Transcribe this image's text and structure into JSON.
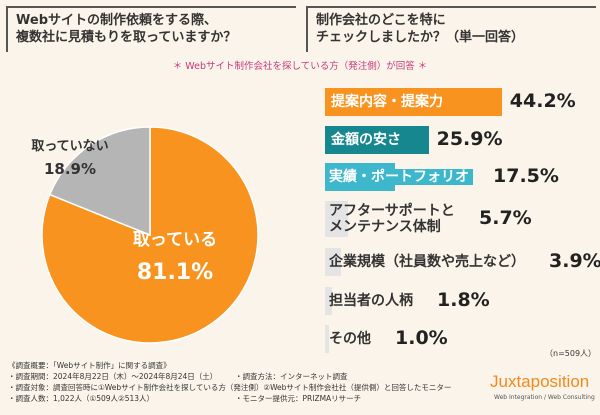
{
  "questions": [
    "Webサイトの制作依頼をする際、\n複数社に見積もりを取っていますか？",
    "制作会社のどこを特に\nチェックしましたか？（単一回答）"
  ],
  "respondents": "＊ Webサイト制作会社を探している方（発注側）が回答 ＊",
  "chart_data": [
    {
      "type": "pie",
      "categories": [
        "取っている",
        "取っていない"
      ],
      "values": [
        81.1,
        18.9
      ],
      "value_labels": [
        "81.1%",
        "18.9%"
      ],
      "colors": [
        "#f7931e",
        "#b5b5b5"
      ]
    },
    {
      "type": "bar",
      "categories": [
        "提案内容・提案力",
        "金額の安さ",
        "実績・ポートフォリオ",
        "アフターサポートと\nメンテナンス体制",
        "企業規模（社員数や売上など）",
        "担当者の人柄",
        "その他"
      ],
      "values": [
        44.2,
        25.9,
        17.5,
        5.7,
        3.9,
        1.8,
        1.0
      ],
      "value_labels": [
        "44.2%",
        "25.9%",
        "17.5%",
        "5.7%",
        "3.9%",
        "1.8%",
        "1.0%"
      ],
      "colors": [
        "#f7931e",
        "#16868f",
        "#3cb7cb",
        "#e4e4e4",
        "#e4e4e4",
        "#e4e4e4",
        "#e4e4e4"
      ]
    }
  ],
  "sample_size": "（n=509人）",
  "notes": [
    "《調査概要：「Webサイト制作」に関する調査》",
    "・調査期間：2024年8月22日（木）～2024年8月24日（土）",
    "・調査方法：インターネット調査",
    "・調査対象：調査回答時に①Webサイト制作会社を探している方（発注側）②Webサイト制作会社社（提供側）と回答したモニター",
    "・調査人数：1,022人（①509人②513人）",
    "・モニター提供元：PRIZMAリサーチ"
  ],
  "logo": {
    "name": "Juxtaposition",
    "tagline": "Web Integration / Web Consulting"
  }
}
